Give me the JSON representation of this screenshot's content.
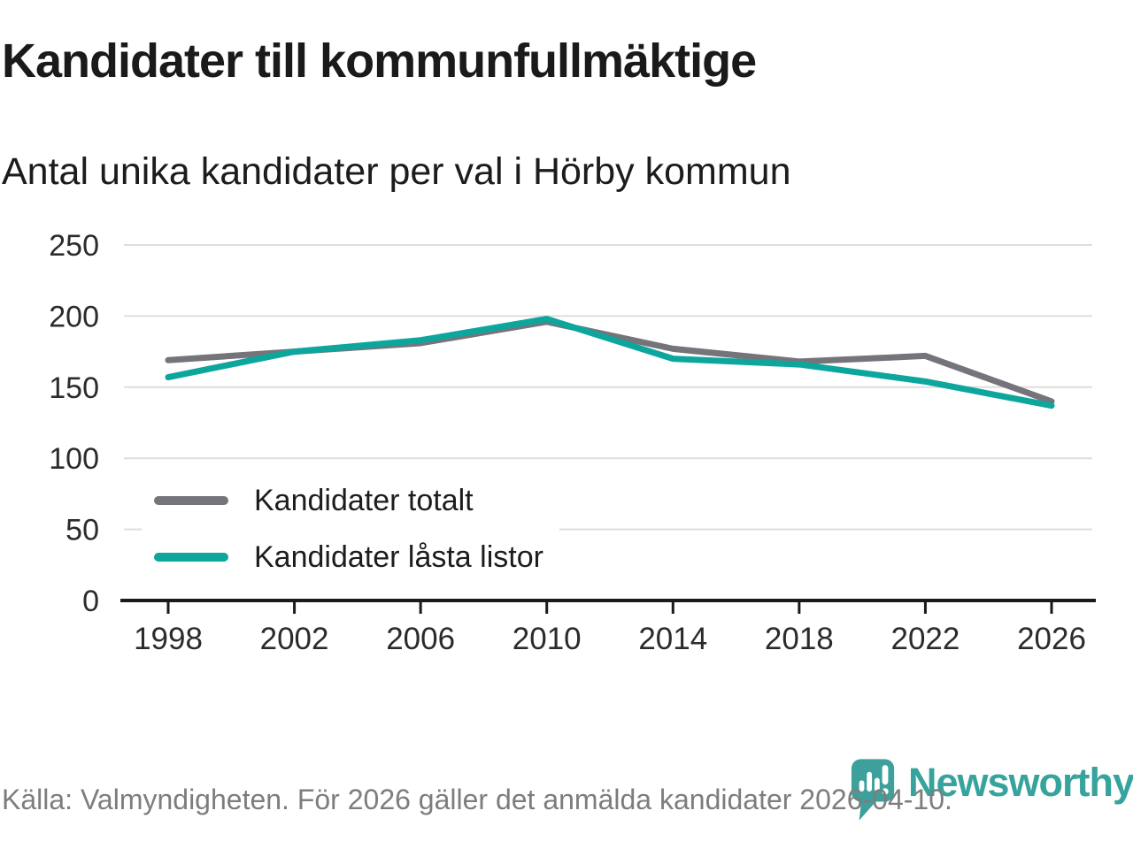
{
  "header": {
    "title": "Kandidater till kommunfullmäktige",
    "subtitle": "Antal unika kandidater per val i Hörby kommun"
  },
  "chart_data": {
    "type": "line",
    "categories": [
      "1998",
      "2002",
      "2006",
      "2010",
      "2014",
      "2018",
      "2022",
      "2026"
    ],
    "series": [
      {
        "name": "Kandidater totalt",
        "color": "#76747b",
        "values": [
          169,
          175,
          181,
          196,
          177,
          168,
          172,
          140
        ]
      },
      {
        "name": "Kandidater låsta listor",
        "color": "#0da69d",
        "values": [
          157,
          175,
          183,
          198,
          170,
          166,
          154,
          137
        ]
      }
    ],
    "title": "Kandidater till kommunfullmäktige",
    "subtitle": "Antal unika kandidater per val i Hörby kommun",
    "xlabel": "",
    "ylabel": "",
    "ylim": [
      0,
      250
    ],
    "yticks": [
      0,
      50,
      100,
      150,
      200,
      250
    ],
    "grid": "horizontal",
    "legend_position": "inside-bottom-left"
  },
  "colors": {
    "grid": "#dedede",
    "axis": "#1a1a1a",
    "tick_label": "#2b2b2b",
    "background": "#ffffff"
  },
  "footer": {
    "source_text": "Källa: Valmyndigheten. För 2026 gäller det anmälda kandidater 2026-04-10."
  },
  "logo": {
    "wordmark": "Newsworthy",
    "color": "#37a39d",
    "icon": "newsworthy-pin-barchart-icon"
  }
}
